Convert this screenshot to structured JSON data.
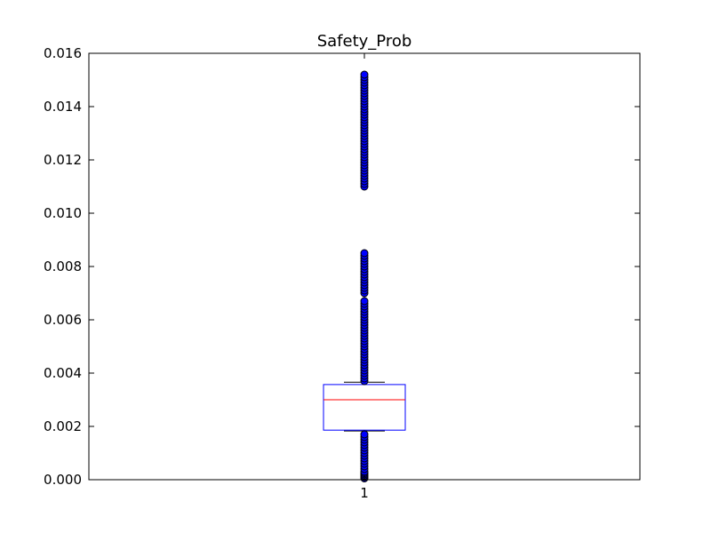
{
  "chart_data": {
    "type": "boxplot",
    "title": "Safety_Prob",
    "xlabel": "",
    "ylabel": "",
    "ylim": [
      0.0,
      0.016
    ],
    "y_ticks": [
      "0.000",
      "0.002",
      "0.004",
      "0.006",
      "0.008",
      "0.010",
      "0.012",
      "0.014",
      "0.016"
    ],
    "x_ticks": [
      "1"
    ],
    "grid": false,
    "boxes": [
      {
        "position": 1,
        "label": "1",
        "whisker_low": 0.00183,
        "q1": 0.00186,
        "median": 0.003,
        "q3": 0.00357,
        "whisker_high": 0.00366,
        "outliers": [
          5e-05,
          0.0001,
          0.00015,
          0.0002,
          0.00025,
          0.0003,
          0.0004,
          0.0005,
          0.0006,
          0.0007,
          0.0008,
          0.0009,
          0.001,
          0.0011,
          0.0012,
          0.0013,
          0.0014,
          0.0015,
          0.0016,
          0.0017,
          0.0037,
          0.0038,
          0.0039,
          0.004,
          0.0041,
          0.0042,
          0.0043,
          0.0044,
          0.0045,
          0.0046,
          0.0047,
          0.0048,
          0.0049,
          0.005,
          0.0051,
          0.0052,
          0.0053,
          0.0054,
          0.0055,
          0.0056,
          0.0057,
          0.0058,
          0.0059,
          0.006,
          0.0061,
          0.0062,
          0.0063,
          0.0064,
          0.0065,
          0.0066,
          0.0067,
          0.007,
          0.0071,
          0.0072,
          0.0073,
          0.0074,
          0.0075,
          0.0076,
          0.0077,
          0.0078,
          0.0079,
          0.008,
          0.0081,
          0.0082,
          0.0083,
          0.0084,
          0.0085,
          0.011,
          0.0111,
          0.0112,
          0.0113,
          0.0114,
          0.0115,
          0.0116,
          0.0117,
          0.0118,
          0.0119,
          0.012,
          0.0121,
          0.0122,
          0.0123,
          0.0124,
          0.0125,
          0.0126,
          0.0127,
          0.0128,
          0.0129,
          0.013,
          0.0131,
          0.0132,
          0.0133,
          0.0134,
          0.0135,
          0.0136,
          0.0137,
          0.0138,
          0.0139,
          0.014,
          0.0141,
          0.0142,
          0.0143,
          0.0144,
          0.0145,
          0.0146,
          0.0147,
          0.0148,
          0.0149,
          0.015,
          0.0151,
          0.0152
        ]
      }
    ],
    "colors": {
      "box": "#0000ff",
      "median": "#ff0000",
      "whisker": "#000000",
      "outlier_fill": "#0000ff",
      "outlier_edge": "#000000",
      "axes": "#000000"
    }
  }
}
